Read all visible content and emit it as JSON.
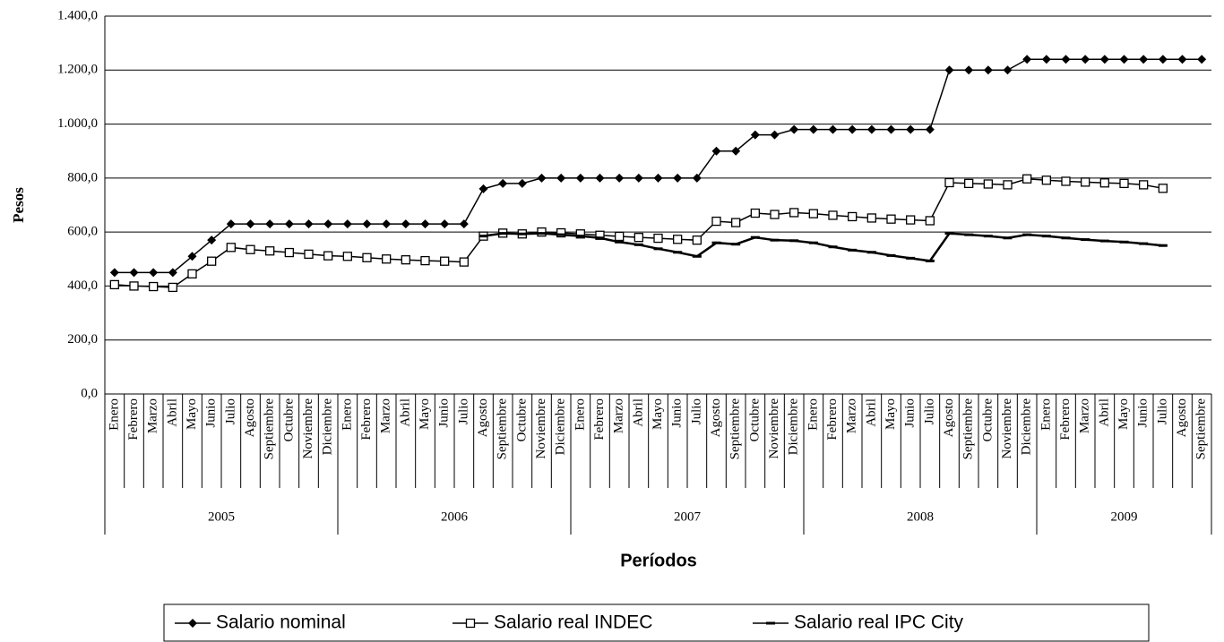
{
  "chart_data": {
    "type": "line",
    "x_label": "Períodos",
    "y_label": "Pesos",
    "groups": [
      {
        "name": "2005",
        "categories": [
          "Enero",
          "Febrero",
          "Marzo",
          "Abril",
          "Mayo",
          "Junio",
          "Julio",
          "Agosto",
          "Septiembre",
          "Octubre",
          "Noviembre",
          "Diciembre"
        ]
      },
      {
        "name": "2006",
        "categories": [
          "Enero",
          "Febrero",
          "Marzo",
          "Abril",
          "Mayo",
          "Junio",
          "Julio",
          "Agosto",
          "Septiembre",
          "Octubre",
          "Noviembre",
          "Diciembre"
        ]
      },
      {
        "name": "2007",
        "categories": [
          "Enero",
          "Febrero",
          "Marzo",
          "Abril",
          "Mayo",
          "Junio",
          "Julio",
          "Agosto",
          "Septiembre",
          "Octubre",
          "Noviembre",
          "Diciembre"
        ]
      },
      {
        "name": "2008",
        "categories": [
          "Enero",
          "Febrero",
          "Marzo",
          "Abril",
          "Mayo",
          "Junio",
          "Julio",
          "Agosto",
          "Septiembre",
          "Octubre",
          "Noviembre",
          "Diciembre"
        ]
      },
      {
        "name": "2009",
        "categories": [
          "Enero",
          "Febrero",
          "Marzo",
          "Abril",
          "Mayo",
          "Junio",
          "Julio",
          "Agosto",
          "Septiembre"
        ]
      }
    ],
    "series": [
      {
        "name": "Salario nominal",
        "color": "#000000",
        "marker": "diamond",
        "values": [
          450,
          450,
          450,
          450,
          510,
          570,
          630,
          630,
          630,
          630,
          630,
          630,
          630,
          630,
          630,
          630,
          630,
          630,
          630,
          760,
          780,
          780,
          800,
          800,
          800,
          800,
          800,
          800,
          800,
          800,
          800,
          900,
          900,
          960,
          960,
          980,
          980,
          980,
          980,
          980,
          980,
          980,
          980,
          1200,
          1200,
          1200,
          1200,
          1240,
          1240,
          1240,
          1240,
          1240,
          1240,
          1240,
          1240,
          1240,
          1240
        ]
      },
      {
        "name": "Salario real INDEC",
        "color": "#000000",
        "marker": "square",
        "values": [
          405,
          400,
          398,
          395,
          445,
          492,
          543,
          535,
          530,
          524,
          518,
          512,
          510,
          505,
          500,
          497,
          494,
          492,
          489,
          585,
          596,
          593,
          600,
          597,
          593,
          588,
          584,
          580,
          577,
          573,
          570,
          640,
          635,
          670,
          665,
          672,
          668,
          662,
          657,
          652,
          648,
          645,
          642,
          783,
          780,
          778,
          775,
          797,
          792,
          788,
          785,
          782,
          780,
          775,
          762,
          null,
          null
        ]
      },
      {
        "name": "Salario real IPC City",
        "color": "#000000",
        "marker": "dash",
        "values": [
          null,
          null,
          null,
          null,
          null,
          null,
          null,
          null,
          null,
          null,
          null,
          null,
          null,
          null,
          null,
          null,
          null,
          null,
          null,
          585,
          595,
          593,
          595,
          590,
          585,
          578,
          563,
          553,
          538,
          525,
          510,
          560,
          555,
          580,
          570,
          568,
          560,
          545,
          533,
          525,
          513,
          503,
          493,
          595,
          590,
          585,
          578,
          590,
          585,
          578,
          572,
          567,
          563,
          557,
          550,
          null,
          null
        ]
      }
    ],
    "ylim": [
      0,
      1400
    ],
    "yticks": [
      {
        "value": 0,
        "label": "0,0"
      },
      {
        "value": 200,
        "label": "200,0"
      },
      {
        "value": 400,
        "label": "400,0"
      },
      {
        "value": 600,
        "label": "600,0"
      },
      {
        "value": 800,
        "label": "800,0"
      },
      {
        "value": 1000,
        "label": "1.000,0"
      },
      {
        "value": 1200,
        "label": "1.200,0"
      },
      {
        "value": 1400,
        "label": "1.400,0"
      }
    ],
    "grid": true
  }
}
